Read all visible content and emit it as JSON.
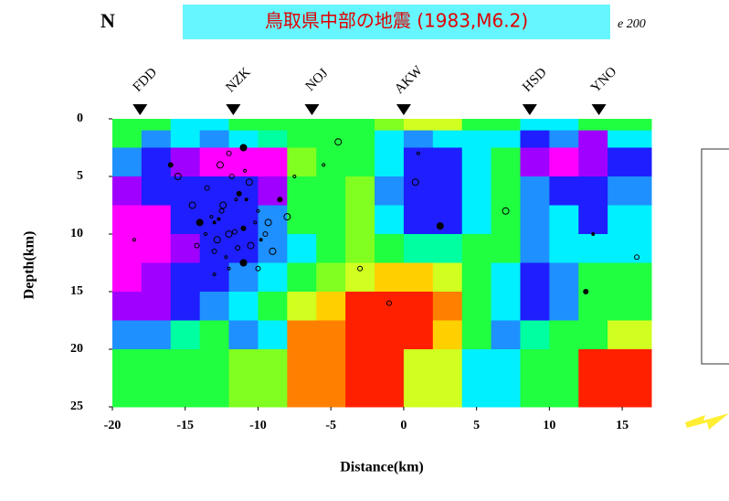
{
  "chart_data": {
    "type": "section",
    "title": "鳥取県中部の地震 (1983,M6.2)",
    "corner_label": "N",
    "clipped_text": "e 200",
    "xlabel": "Distance(km)",
    "ylabel": "Depth(km)",
    "xlim": [
      -20,
      17
    ],
    "ylim": [
      0,
      25
    ],
    "invert_y": true,
    "xticks": [
      -20,
      -15,
      -10,
      -5,
      0,
      5,
      10,
      15
    ],
    "yticks": [
      0,
      5,
      10,
      15,
      20,
      25
    ],
    "stations": {
      "names": [
        "FDD",
        "NZK",
        "NOJ",
        "AKW",
        "HSD",
        "YNO"
      ],
      "x": [
        -18.1,
        -11.7,
        -6.3,
        0,
        8.65,
        13.4
      ]
    },
    "cells": {
      "x_edges": [
        -20,
        -18,
        -16,
        -14,
        -12,
        -10,
        -8,
        -6,
        -4,
        -2,
        0,
        2,
        4,
        6,
        8,
        10,
        12,
        14,
        17
      ],
      "depth_edges": [
        0,
        1,
        2.5,
        5,
        7.5,
        10,
        12.5,
        15,
        17.5,
        20,
        25
      ],
      "colors": [
        [
          "#20ff40",
          "#20ff40",
          "#00f0ff",
          "#00f0ff",
          "#20ff40",
          "#20ff40",
          "#20ff40",
          "#20ff40",
          "#20ff40",
          "#80ff20",
          "#d0ff20",
          "#d0ff20",
          "#20ff40",
          "#20ff40",
          "#00f0ff",
          "#00f0ff",
          "#20ff40",
          "#20ff40"
        ],
        [
          "#20ff40",
          "#1e90ff",
          "#00f0ff",
          "#1e90ff",
          "#00f0ff",
          "#00ffa0",
          "#20ff40",
          "#20ff40",
          "#20ff40",
          "#00f0ff",
          "#1e90ff",
          "#00f0ff",
          "#00f0ff",
          "#00f0ff",
          "#1e1eff",
          "#1e90ff",
          "#a000ff",
          "#00f0ff"
        ],
        [
          "#1e90ff",
          "#1e1eff",
          "#a000ff",
          "#ff00ff",
          "#ff00ff",
          "#ff00ff",
          "#80ff20",
          "#20ff40",
          "#20ff40",
          "#00f0ff",
          "#1e1eff",
          "#1e1eff",
          "#00f0ff",
          "#20ff40",
          "#a000ff",
          "#ff00ff",
          "#a000ff",
          "#1e1eff"
        ],
        [
          "#a000ff",
          "#1e1eff",
          "#1e1eff",
          "#1e1eff",
          "#1e1eff",
          "#a000ff",
          "#20ff40",
          "#20ff40",
          "#80ff20",
          "#1e90ff",
          "#1e1eff",
          "#1e1eff",
          "#00f0ff",
          "#20ff40",
          "#1e90ff",
          "#1e1eff",
          "#1e1eff",
          "#1e90ff"
        ],
        [
          "#ff00ff",
          "#ff00ff",
          "#1e1eff",
          "#1e1eff",
          "#1e1eff",
          "#1e90ff",
          "#20ff40",
          "#20ff40",
          "#80ff20",
          "#00f0ff",
          "#1e1eff",
          "#1e1eff",
          "#00f0ff",
          "#20ff40",
          "#1e90ff",
          "#00f0ff",
          "#1e1eff",
          "#00f0ff"
        ],
        [
          "#ff00ff",
          "#ff00ff",
          "#a000ff",
          "#1e1eff",
          "#1e1eff",
          "#1e90ff",
          "#00f0ff",
          "#20ff40",
          "#80ff20",
          "#20ff40",
          "#00ffa0",
          "#00ffa0",
          "#20ff40",
          "#20ff40",
          "#1e90ff",
          "#00f0ff",
          "#00f0ff",
          "#00f0ff"
        ],
        [
          "#ff00ff",
          "#a000ff",
          "#1e1eff",
          "#1e1eff",
          "#1e90ff",
          "#00f0ff",
          "#20ff40",
          "#80ff20",
          "#d0ff20",
          "#ffd000",
          "#ffd000",
          "#d0ff20",
          "#20ff40",
          "#00f0ff",
          "#1e1eff",
          "#1e90ff",
          "#20ff40",
          "#20ff40"
        ],
        [
          "#a000ff",
          "#a000ff",
          "#1e1eff",
          "#1e90ff",
          "#00f0ff",
          "#20ff40",
          "#d0ff20",
          "#ffd000",
          "#ff2000",
          "#ff2000",
          "#ff2000",
          "#ff8000",
          "#20ff40",
          "#00f0ff",
          "#1e1eff",
          "#1e90ff",
          "#20ff40",
          "#20ff40"
        ],
        [
          "#1e90ff",
          "#1e90ff",
          "#00ffa0",
          "#20ff40",
          "#1e90ff",
          "#00f0ff",
          "#ff8000",
          "#ff8000",
          "#ff2000",
          "#ff2000",
          "#ff2000",
          "#ffd000",
          "#20ff40",
          "#1e90ff",
          "#00ffa0",
          "#20ff40",
          "#20ff40",
          "#d0ff20"
        ],
        [
          "#20ff40",
          "#20ff40",
          "#20ff40",
          "#20ff40",
          "#80ff20",
          "#80ff20",
          "#ff8000",
          "#ff8000",
          "#ff2000",
          "#ff2000",
          "#d0ff20",
          "#d0ff20",
          "#00f0ff",
          "#00f0ff",
          "#20ff40",
          "#20ff40",
          "#ff2000",
          "#ff2000"
        ]
      ]
    },
    "events": {
      "x": [
        -13,
        -12.5,
        -12,
        -11.5,
        -11,
        -10.5,
        -10,
        -13.5,
        -14,
        -12.2,
        -11.8,
        -12.8,
        -10.8,
        -9.5,
        -9,
        -13.2,
        -11.3,
        -12.6,
        -10.2,
        -14.2,
        -11,
        -12,
        -13,
        -10.6,
        -9.8,
        -11.6,
        -12.4,
        -13.6,
        -8.5,
        -8,
        -7.5,
        -12,
        -11,
        -13,
        -10,
        -14.5,
        -12.7,
        -11.4,
        -9.3,
        -10.9,
        -16,
        -15.5,
        -18.5,
        -3,
        2.5,
        1,
        -1,
        7,
        13,
        16,
        -4.5,
        -5.5,
        12.5,
        0.8
      ],
      "y": [
        9,
        8,
        10,
        7,
        9.5,
        11,
        8,
        6,
        9,
        12,
        5,
        10.5,
        7,
        10,
        11.5,
        8.5,
        6.5,
        4,
        9,
        11,
        12.5,
        13,
        11.5,
        5.5,
        10.5,
        9.8,
        7.5,
        10,
        7,
        8.5,
        5,
        3,
        2.5,
        13.5,
        13,
        7.5,
        8.7,
        11.2,
        9,
        4.5,
        4,
        5,
        10.5,
        13,
        9.3,
        3,
        16,
        8,
        10,
        12,
        2,
        4,
        15,
        5.5
      ]
    }
  }
}
